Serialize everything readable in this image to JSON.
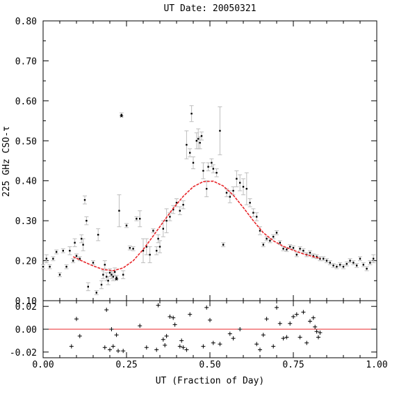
{
  "chart_data": {
    "type": "scatter",
    "title": "UT Date: 20050321",
    "xlabel": "UT (Fraction of Day)",
    "ylabel": "225 GHz CSO-τ",
    "xlim": [
      0,
      1
    ],
    "ylim": [
      0.1,
      0.8
    ],
    "x_ticks": [
      "0.00",
      "0.25",
      "0.50",
      "0.75",
      "1.00"
    ],
    "y_ticks": [
      "0.10",
      "0.20",
      "0.30",
      "0.40",
      "0.50",
      "0.60",
      "0.70",
      "0.80"
    ],
    "grid": false,
    "colors": {
      "fit": "#e8262a",
      "error_bars": "#bdbdbd",
      "points": "#000000",
      "zero_line": "#e8262a"
    },
    "series": [
      {
        "kind": "points_with_error_bars",
        "points": [
          [
            0.0,
            0.185,
            0.005
          ],
          [
            0.01,
            0.205,
            0.01
          ],
          [
            0.02,
            0.185,
            0.005
          ],
          [
            0.03,
            0.205,
            0.005
          ],
          [
            0.04,
            0.222,
            0.005
          ],
          [
            0.05,
            0.165,
            0.005
          ],
          [
            0.06,
            0.225,
            0.005
          ],
          [
            0.07,
            0.185,
            0.005
          ],
          [
            0.08,
            0.225,
            0.01
          ],
          [
            0.09,
            0.2,
            0.005
          ],
          [
            0.095,
            0.245,
            0.01
          ],
          [
            0.1,
            0.212,
            0.005
          ],
          [
            0.11,
            0.205,
            0.005
          ],
          [
            0.115,
            0.255,
            0.01
          ],
          [
            0.12,
            0.24,
            0.015
          ],
          [
            0.125,
            0.352,
            0.01
          ],
          [
            0.13,
            0.3,
            0.01
          ],
          [
            0.135,
            0.135,
            0.01
          ],
          [
            0.15,
            0.195,
            0.005
          ],
          [
            0.16,
            0.12,
            0.005
          ],
          [
            0.165,
            0.265,
            0.015
          ],
          [
            0.175,
            0.14,
            0.01
          ],
          [
            0.18,
            0.165,
            0.01
          ],
          [
            0.185,
            0.19,
            0.01
          ],
          [
            0.19,
            0.16,
            0.01
          ],
          [
            0.195,
            0.15,
            0.01
          ],
          [
            0.2,
            0.17,
            0.01
          ],
          [
            0.205,
            0.165,
            0.01
          ],
          [
            0.21,
            0.16,
            0.01
          ],
          [
            0.215,
            0.172,
            0.01
          ],
          [
            0.22,
            0.158,
            0.005
          ],
          [
            0.228,
            0.325,
            0.04
          ],
          [
            0.235,
            0.565,
            0.005
          ],
          [
            0.24,
            0.165,
            0.01
          ],
          [
            0.25,
            0.288,
            0.005
          ],
          [
            0.26,
            0.232,
            0.005
          ],
          [
            0.27,
            0.23,
            0.005
          ],
          [
            0.28,
            0.305,
            0.005
          ],
          [
            0.29,
            0.305,
            0.02
          ],
          [
            0.3,
            0.225,
            0.03
          ],
          [
            0.31,
            0.235,
            0.02
          ],
          [
            0.32,
            0.215,
            0.02
          ],
          [
            0.33,
            0.275,
            0.005
          ],
          [
            0.34,
            0.225,
            0.01
          ],
          [
            0.345,
            0.255,
            0.01
          ],
          [
            0.35,
            0.235,
            0.015
          ],
          [
            0.36,
            0.28,
            0.02
          ],
          [
            0.37,
            0.3,
            0.03
          ],
          [
            0.38,
            0.31,
            0.01
          ],
          [
            0.39,
            0.328,
            0.01
          ],
          [
            0.4,
            0.345,
            0.01
          ],
          [
            0.41,
            0.325,
            0.01
          ],
          [
            0.42,
            0.34,
            0.01
          ],
          [
            0.43,
            0.49,
            0.035
          ],
          [
            0.44,
            0.47,
            0.01
          ],
          [
            0.445,
            0.568,
            0.02
          ],
          [
            0.45,
            0.445,
            0.015
          ],
          [
            0.46,
            0.5,
            0.02
          ],
          [
            0.465,
            0.505,
            0.025
          ],
          [
            0.47,
            0.495,
            0.015
          ],
          [
            0.475,
            0.512,
            0.01
          ],
          [
            0.48,
            0.425,
            0.02
          ],
          [
            0.49,
            0.38,
            0.02
          ],
          [
            0.495,
            0.435,
            0.01
          ],
          [
            0.505,
            0.445,
            0.01
          ],
          [
            0.51,
            0.43,
            0.01
          ],
          [
            0.52,
            0.42,
            0.01
          ],
          [
            0.53,
            0.525,
            0.06
          ],
          [
            0.54,
            0.24,
            0.005
          ],
          [
            0.55,
            0.37,
            0.01
          ],
          [
            0.56,
            0.36,
            0.015
          ],
          [
            0.57,
            0.375,
            0.01
          ],
          [
            0.58,
            0.405,
            0.02
          ],
          [
            0.59,
            0.395,
            0.02
          ],
          [
            0.6,
            0.385,
            0.02
          ],
          [
            0.61,
            0.38,
            0.04
          ],
          [
            0.62,
            0.345,
            0.01
          ],
          [
            0.63,
            0.32,
            0.01
          ],
          [
            0.64,
            0.31,
            0.01
          ],
          [
            0.65,
            0.275,
            0.01
          ],
          [
            0.66,
            0.24,
            0.005
          ],
          [
            0.67,
            0.255,
            0.005
          ],
          [
            0.68,
            0.25,
            0.005
          ],
          [
            0.69,
            0.26,
            0.005
          ],
          [
            0.7,
            0.27,
            0.005
          ],
          [
            0.71,
            0.245,
            0.005
          ],
          [
            0.72,
            0.23,
            0.005
          ],
          [
            0.73,
            0.228,
            0.005
          ],
          [
            0.74,
            0.235,
            0.005
          ],
          [
            0.75,
            0.232,
            0.005
          ],
          [
            0.76,
            0.215,
            0.005
          ],
          [
            0.77,
            0.23,
            0.005
          ],
          [
            0.78,
            0.225,
            0.005
          ],
          [
            0.79,
            0.215,
            0.005
          ],
          [
            0.8,
            0.22,
            0.005
          ],
          [
            0.81,
            0.212,
            0.005
          ],
          [
            0.82,
            0.21,
            0.005
          ],
          [
            0.83,
            0.205,
            0.005
          ],
          [
            0.84,
            0.205,
            0.005
          ],
          [
            0.85,
            0.2,
            0.005
          ],
          [
            0.86,
            0.195,
            0.005
          ],
          [
            0.87,
            0.188,
            0.005
          ],
          [
            0.88,
            0.185,
            0.005
          ],
          [
            0.89,
            0.19,
            0.005
          ],
          [
            0.9,
            0.185,
            0.005
          ],
          [
            0.91,
            0.192,
            0.005
          ],
          [
            0.92,
            0.2,
            0.005
          ],
          [
            0.93,
            0.195,
            0.005
          ],
          [
            0.94,
            0.188,
            0.005
          ],
          [
            0.95,
            0.205,
            0.005
          ],
          [
            0.96,
            0.19,
            0.005
          ],
          [
            0.97,
            0.18,
            0.005
          ],
          [
            0.98,
            0.195,
            0.005
          ],
          [
            0.99,
            0.205,
            0.01
          ]
        ]
      },
      {
        "kind": "fit_curve",
        "x": [
          0.09,
          0.12,
          0.15,
          0.18,
          0.21,
          0.24,
          0.27,
          0.3,
          0.33,
          0.36,
          0.39,
          0.42,
          0.45,
          0.48,
          0.51,
          0.54,
          0.57,
          0.6,
          0.63,
          0.66,
          0.69,
          0.72,
          0.75,
          0.78,
          0.81,
          0.83
        ],
        "y": [
          0.21,
          0.198,
          0.187,
          0.178,
          0.175,
          0.182,
          0.2,
          0.228,
          0.262,
          0.297,
          0.331,
          0.361,
          0.385,
          0.398,
          0.399,
          0.387,
          0.364,
          0.333,
          0.3,
          0.27,
          0.25,
          0.236,
          0.226,
          0.217,
          0.21,
          0.206
        ]
      }
    ],
    "stars": [
      [
        0.235,
        0.565
      ],
      [
        0.22,
        0.157
      ]
    ],
    "residuals": {
      "ylim": [
        -0.025,
        0.025
      ],
      "y_ticks": [
        "0.02",
        "0.00",
        "-0.02"
      ],
      "points": [
        [
          0.085,
          -0.015
        ],
        [
          0.1,
          0.009
        ],
        [
          0.11,
          -0.006
        ],
        [
          0.185,
          -0.016
        ],
        [
          0.19,
          0.017
        ],
        [
          0.2,
          -0.018
        ],
        [
          0.205,
          0.0
        ],
        [
          0.21,
          -0.015
        ],
        [
          0.22,
          -0.005
        ],
        [
          0.225,
          -0.019
        ],
        [
          0.24,
          -0.019
        ],
        [
          0.29,
          0.003
        ],
        [
          0.31,
          -0.016
        ],
        [
          0.34,
          -0.018
        ],
        [
          0.345,
          0.021
        ],
        [
          0.36,
          -0.009
        ],
        [
          0.365,
          -0.014
        ],
        [
          0.37,
          -0.006
        ],
        [
          0.38,
          0.011
        ],
        [
          0.39,
          0.01
        ],
        [
          0.395,
          0.004
        ],
        [
          0.41,
          -0.015
        ],
        [
          0.415,
          -0.01
        ],
        [
          0.42,
          -0.016
        ],
        [
          0.43,
          -0.018
        ],
        [
          0.44,
          0.013
        ],
        [
          0.48,
          -0.015
        ],
        [
          0.49,
          0.019
        ],
        [
          0.5,
          0.008
        ],
        [
          0.51,
          -0.012
        ],
        [
          0.53,
          -0.013
        ],
        [
          0.56,
          -0.004
        ],
        [
          0.57,
          -0.008
        ],
        [
          0.59,
          0.0
        ],
        [
          0.64,
          -0.013
        ],
        [
          0.65,
          -0.018
        ],
        [
          0.66,
          -0.005
        ],
        [
          0.67,
          0.009
        ],
        [
          0.69,
          -0.015
        ],
        [
          0.7,
          0.019
        ],
        [
          0.71,
          0.005
        ],
        [
          0.72,
          -0.008
        ],
        [
          0.73,
          -0.007
        ],
        [
          0.74,
          0.005
        ],
        [
          0.75,
          0.011
        ],
        [
          0.76,
          0.013
        ],
        [
          0.77,
          -0.007
        ],
        [
          0.78,
          0.015
        ],
        [
          0.79,
          -0.012
        ],
        [
          0.8,
          0.007
        ],
        [
          0.81,
          0.01
        ],
        [
          0.815,
          0.002
        ],
        [
          0.82,
          -0.002
        ],
        [
          0.825,
          -0.007
        ],
        [
          0.83,
          -0.003
        ]
      ]
    }
  }
}
